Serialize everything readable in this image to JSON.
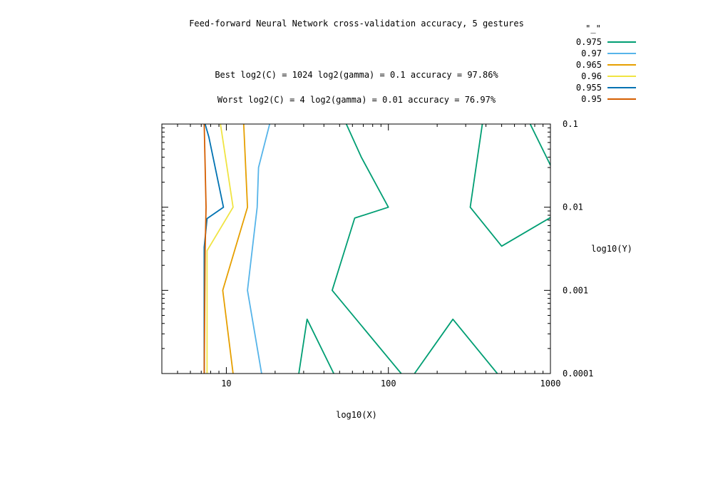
{
  "chart_data": {
    "type": "contour",
    "title": "Feed-forward Neural Network cross-validation accuracy, 5 gestures",
    "annotations": [
      "Best log2(C) = 1024  log2(gamma) = 0.1  accuracy = 97.86%",
      "Worst log2(C) = 4  log2(gamma) = 0.01   accuracy = 76.97%"
    ],
    "legend_title": "\"_\"",
    "legend_position": "top-right",
    "xlabel": "log10(X)",
    "ylabel": "log10(Y)",
    "xscale": "log",
    "yscale": "log",
    "xlim": [
      4,
      1000
    ],
    "ylim": [
      0.0001,
      0.1
    ],
    "x_ticks": [
      "10",
      "100",
      "1000"
    ],
    "y_ticks": [
      "0.1",
      "0.01",
      "0.001",
      "0.0001"
    ],
    "series": [
      {
        "name": "0.975",
        "color": "#009e73",
        "segments": [
          [
            [
              28,
              0.0001
            ],
            [
              31.5,
              0.00045
            ],
            [
              46,
              0.0001
            ]
          ],
          [
            [
              120,
              0.0001
            ],
            [
              45,
              0.001
            ],
            [
              62,
              0.0074
            ],
            [
              100,
              0.01
            ],
            [
              68,
              0.04
            ],
            [
              55,
              0.1
            ]
          ],
          [
            [
              145,
              0.0001
            ],
            [
              250,
              0.00045
            ],
            [
              470,
              0.0001
            ]
          ],
          [
            [
              380,
              0.1
            ],
            [
              320,
              0.01
            ],
            [
              500,
              0.0034
            ],
            [
              1000,
              0.0075
            ]
          ],
          [
            [
              750,
              0.1
            ],
            [
              1000,
              0.032
            ]
          ]
        ]
      },
      {
        "name": "0.97",
        "color": "#56b4e9",
        "segments": [
          [
            [
              16.5,
              0.0001
            ],
            [
              13.5,
              0.001
            ],
            [
              15.5,
              0.01
            ],
            [
              15.8,
              0.03
            ],
            [
              18.5,
              0.1
            ]
          ]
        ]
      },
      {
        "name": "0.965",
        "color": "#e69f00",
        "segments": [
          [
            [
              11,
              0.0001
            ],
            [
              9.5,
              0.001
            ],
            [
              13.5,
              0.01
            ],
            [
              12.8,
              0.1
            ]
          ]
        ]
      },
      {
        "name": "0.96",
        "color": "#f0e442",
        "segments": [
          [
            [
              7.6,
              0.0001
            ],
            [
              7.6,
              0.003
            ],
            [
              11,
              0.01
            ],
            [
              9.2,
              0.1
            ]
          ]
        ]
      },
      {
        "name": "0.955",
        "color": "#0072b2",
        "segments": [
          [
            [
              7.3,
              0.0001
            ],
            [
              7.3,
              0.0033
            ],
            [
              7.6,
              0.0073
            ],
            [
              9.6,
              0.01
            ],
            [
              7.8,
              0.07
            ],
            [
              7.4,
              0.1
            ]
          ]
        ]
      },
      {
        "name": "0.95",
        "color": "#d55e00",
        "segments": [
          [
            [
              7.3,
              0.0001
            ],
            [
              7.4,
              0.003
            ],
            [
              7.5,
              0.01
            ],
            [
              7.3,
              0.1
            ]
          ]
        ]
      }
    ]
  }
}
